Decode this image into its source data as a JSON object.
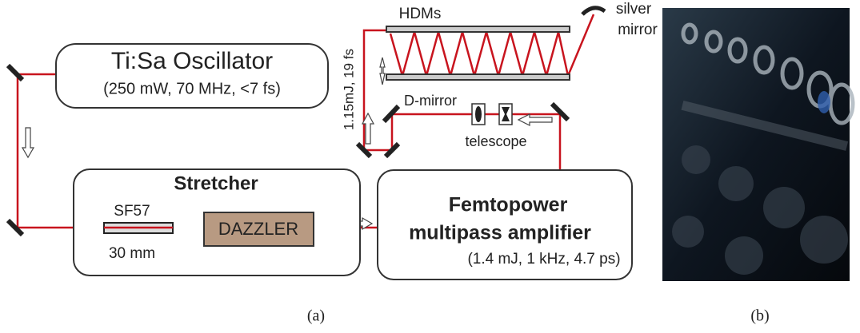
{
  "panel_a": {
    "oscillator": {
      "title": "Ti:Sa Oscillator",
      "specs": "(250 mW, 70 MHz, <7 fs)"
    },
    "stretcher": {
      "title": "Stretcher",
      "crystal": "SF57",
      "length": "30 mm",
      "modulator": "DAZZLER"
    },
    "amplifier": {
      "title": "Femtopower",
      "subtitle": "multipass amplifier",
      "specs": "(1.4 mJ, 1 kHz, 4.7 ps)"
    },
    "compressor": {
      "hdms": "HDMs",
      "silver_mirror": [
        "silver",
        "mirror"
      ],
      "d_mirror": "D-mirror",
      "telescope": "telescope",
      "output": "1.15mJ, 19 fs"
    },
    "caption": "(a)"
  },
  "panel_b": {
    "caption": "(b)"
  }
}
